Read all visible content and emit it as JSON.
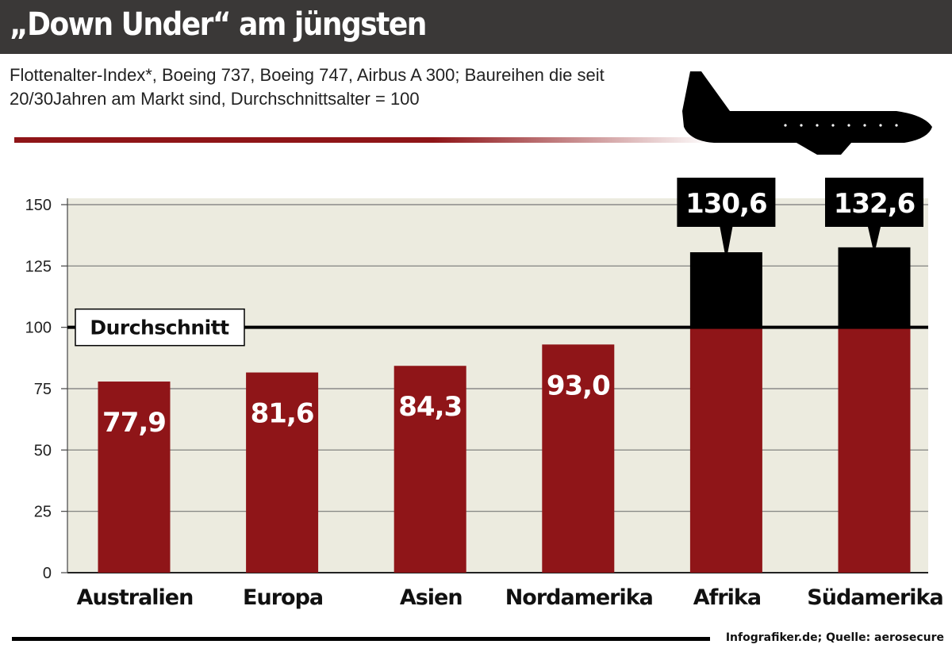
{
  "header": {
    "title": "„Down Under“ am jüngsten",
    "subtitle": "Flottenalter-Index*, Boeing 737, Boeing 747, Airbus A 300; Baureihen die seit 20/30Jahren am Markt sind, Durchschnittsalter = 100",
    "icon": "airplane-icon"
  },
  "footer": {
    "source": "Infografiker.de; Quelle: aerosecure"
  },
  "colors": {
    "bar": "#8f1518",
    "above_average": "#000000",
    "plot_bg": "#ecebdf",
    "header_bg": "#3a3837"
  },
  "chart_data": {
    "type": "bar",
    "title": "„Down Under“ am jüngsten",
    "categories": [
      "Australien",
      "Europa",
      "Asien",
      "Nordamerika",
      "Afrika",
      "Südamerika"
    ],
    "values": [
      77.9,
      81.6,
      84.3,
      93.0,
      130.6,
      132.6
    ],
    "value_labels": [
      "77,9",
      "81,6",
      "84,3",
      "93,0",
      "130,6",
      "132,6"
    ],
    "ylim": [
      0,
      150
    ],
    "yticks": [
      0,
      25,
      50,
      75,
      100,
      125,
      150
    ],
    "grid": true,
    "reference_line": {
      "value": 100,
      "label": "Durchschnitt"
    },
    "xlabel": "",
    "ylabel": ""
  }
}
